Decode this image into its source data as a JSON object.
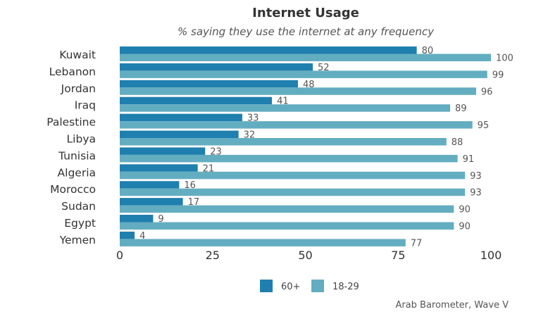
{
  "chart_data": {
    "type": "bar",
    "orientation": "horizontal",
    "title": "Internet Usage",
    "subtitle": "% saying they use the internet at any frequency",
    "categories": [
      "Kuwait",
      "Lebanon",
      "Jordan",
      "Iraq",
      "Palestine",
      "Libya",
      "Tunisia",
      "Algeria",
      "Morocco",
      "Sudan",
      "Egypt",
      "Yemen"
    ],
    "series": [
      {
        "name": "60+",
        "color": "#1f7fae",
        "values": [
          80,
          52,
          48,
          41,
          33,
          32,
          23,
          21,
          16,
          17,
          9,
          4
        ]
      },
      {
        "name": "18-29",
        "color": "#63adc1",
        "values": [
          100,
          99,
          96,
          89,
          95,
          88,
          91,
          93,
          93,
          90,
          90,
          77
        ]
      }
    ],
    "xlim": [
      0,
      100
    ],
    "xticks": [
      0,
      25,
      50,
      75,
      100
    ],
    "xlabel": "",
    "ylabel": "",
    "grid": false,
    "legend_position": "bottom-center",
    "source": "Arab Barometer, Wave V"
  }
}
